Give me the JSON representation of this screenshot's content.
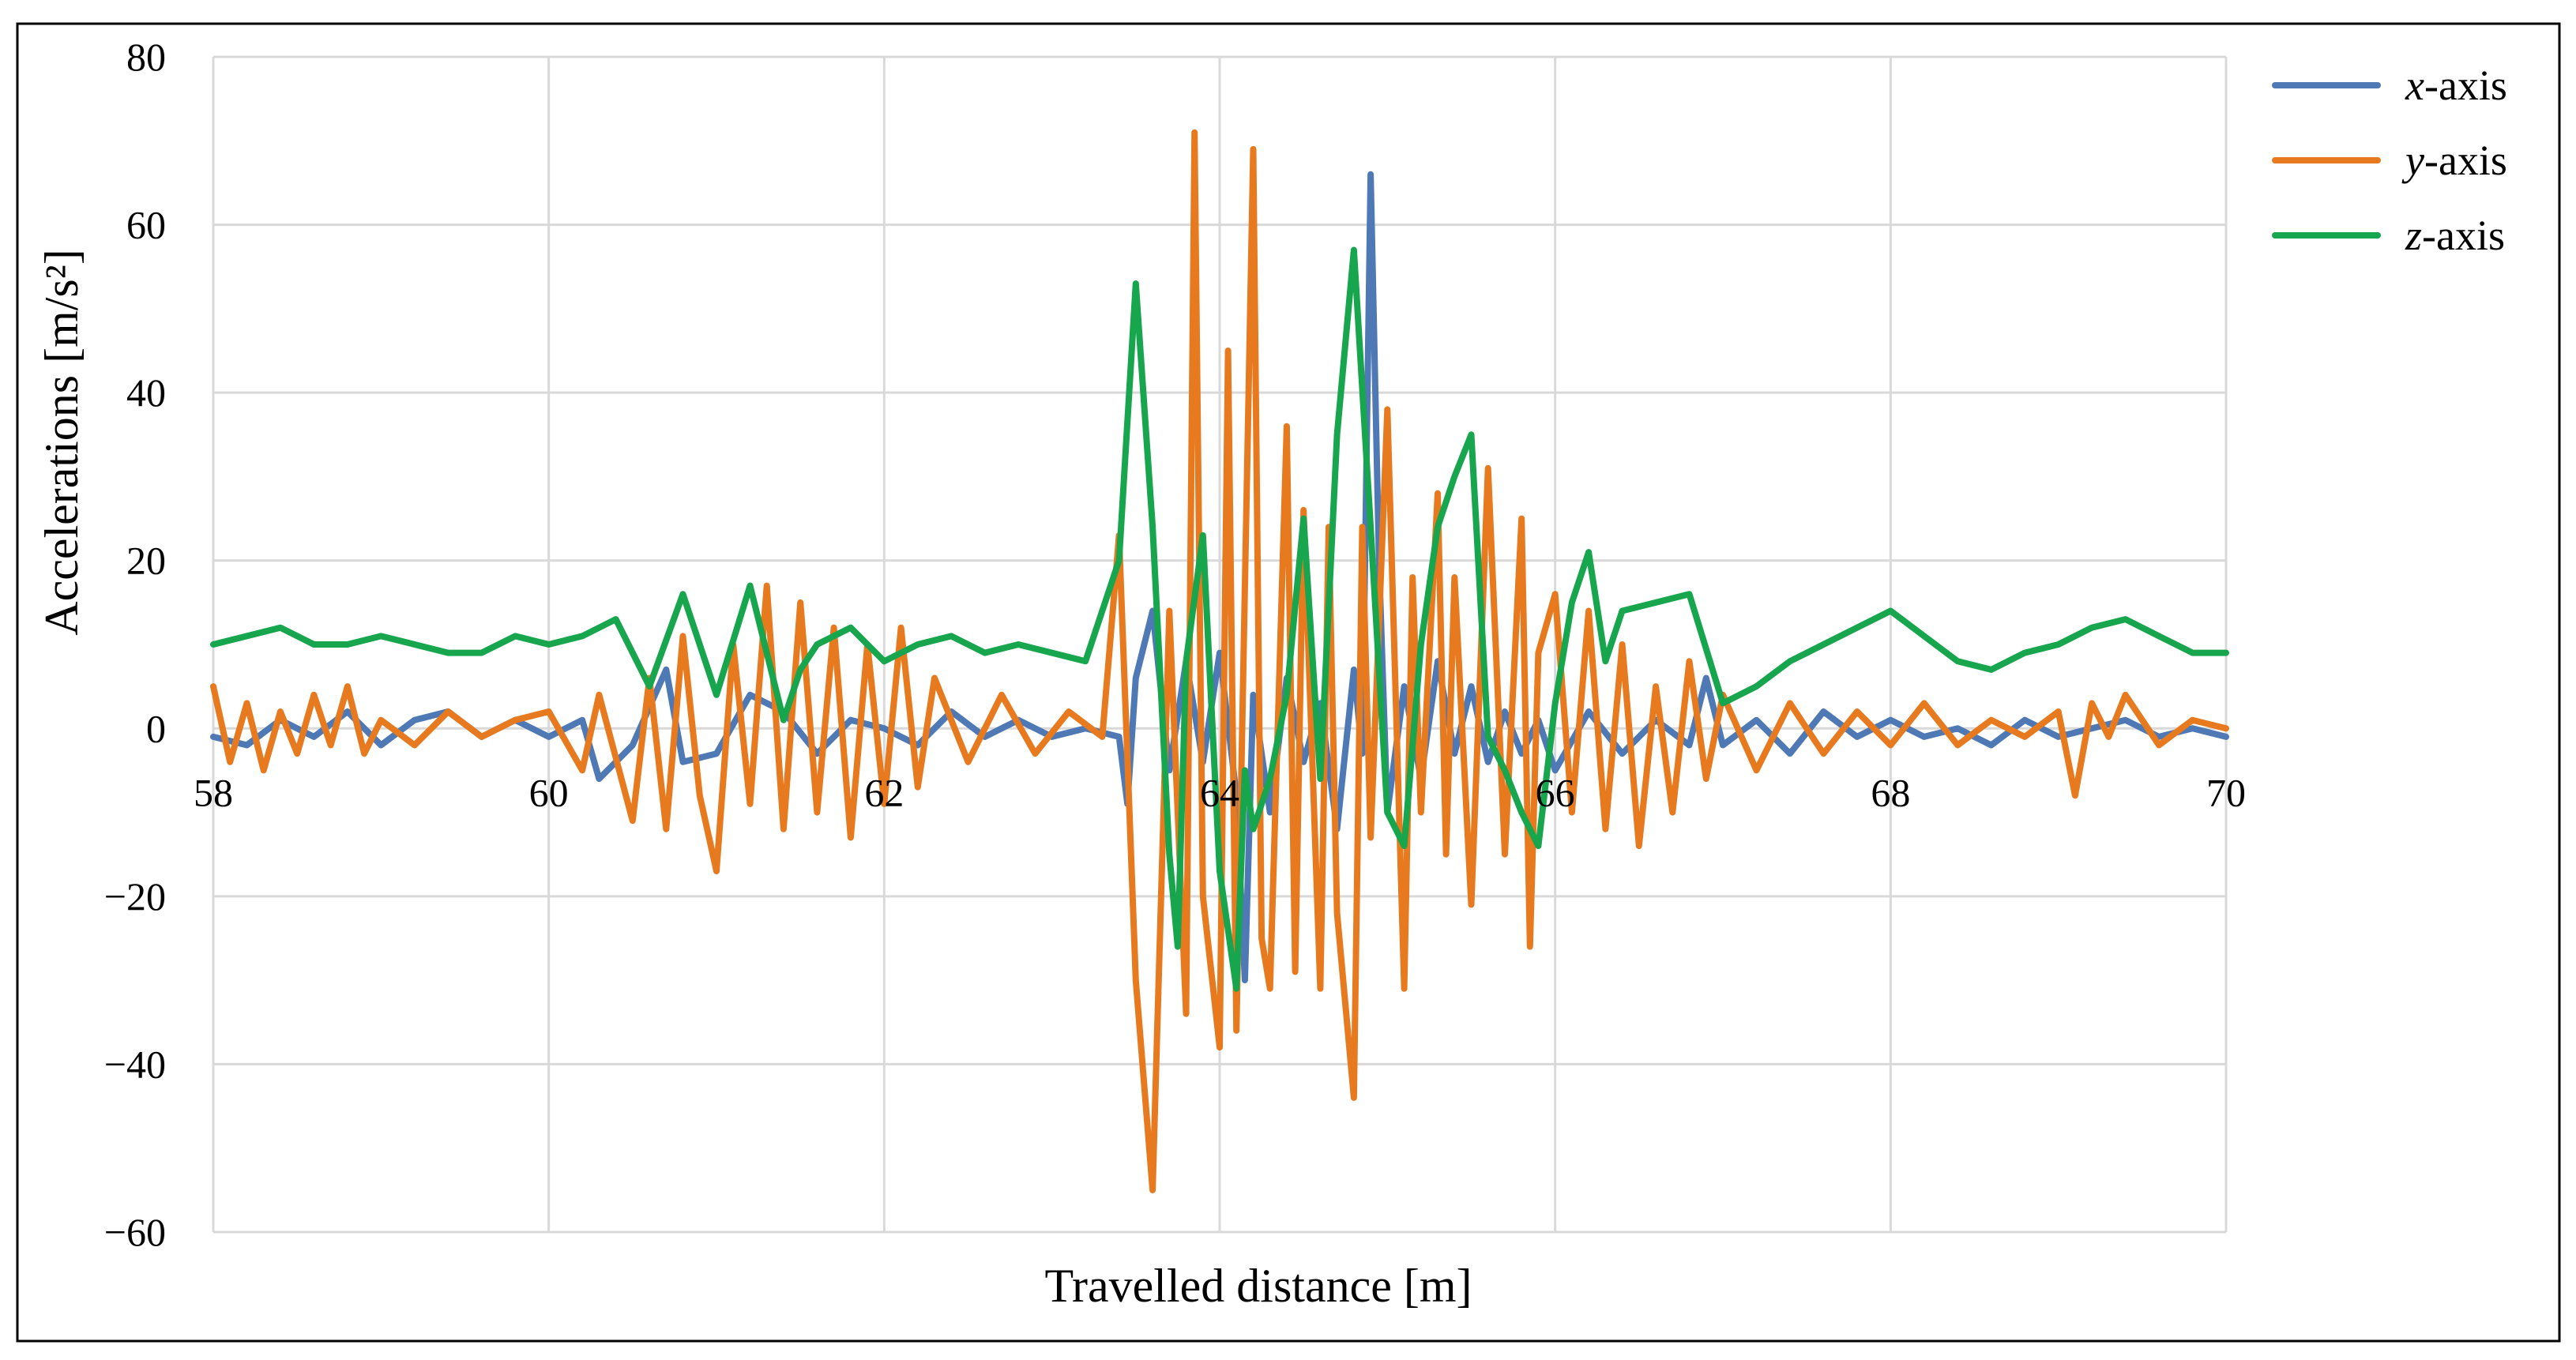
{
  "chart_data": {
    "type": "line",
    "xlabel": "Travelled distance [m]",
    "ylabel": "Accelerations [m/s²]",
    "xlim": [
      58,
      70
    ],
    "ylim": [
      -60,
      80
    ],
    "xticks": [
      "58",
      "60",
      "62",
      "64",
      "66",
      "68",
      "70"
    ],
    "yticks": [
      "80",
      "60",
      "40",
      "20",
      "0",
      "−20",
      "−40",
      "−60"
    ],
    "grid": true,
    "legend_position": "top-right",
    "series": [
      {
        "name": "x-axis",
        "legend_var": "x",
        "legend_suffix": "-axis",
        "color": "#4e79b5",
        "x": [
          58.0,
          58.2,
          58.4,
          58.6,
          58.8,
          59.0,
          59.2,
          59.4,
          59.6,
          59.8,
          60.0,
          60.2,
          60.3,
          60.5,
          60.7,
          60.8,
          61.0,
          61.2,
          61.4,
          61.6,
          61.8,
          62.0,
          62.2,
          62.4,
          62.6,
          62.8,
          63.0,
          63.2,
          63.4,
          63.45,
          63.5,
          63.6,
          63.7,
          63.8,
          63.9,
          64.0,
          64.1,
          64.15,
          64.2,
          64.3,
          64.4,
          64.5,
          64.6,
          64.7,
          64.8,
          64.85,
          64.9,
          64.95,
          65.0,
          65.1,
          65.2,
          65.3,
          65.4,
          65.5,
          65.6,
          65.7,
          65.8,
          65.9,
          66.0,
          66.2,
          66.4,
          66.6,
          66.8,
          66.9,
          67.0,
          67.2,
          67.4,
          67.6,
          67.8,
          68.0,
          68.2,
          68.4,
          68.6,
          68.8,
          69.0,
          69.2,
          69.4,
          69.6,
          69.8,
          70.0
        ],
        "y": [
          -1,
          -2,
          1,
          -1,
          2,
          -2,
          1,
          2,
          -1,
          1,
          -1,
          1,
          -6,
          -2,
          7,
          -4,
          -3,
          4,
          2,
          -3,
          1,
          0,
          -2,
          2,
          -1,
          1,
          -1,
          0,
          -1,
          -9,
          6,
          14,
          -5,
          8,
          -4,
          9,
          -8,
          -30,
          4,
          -10,
          6,
          -4,
          3,
          -12,
          7,
          -3,
          66,
          20,
          -10,
          5,
          -6,
          8,
          -3,
          5,
          -4,
          2,
          -3,
          1,
          -5,
          2,
          -3,
          1,
          -2,
          6,
          -2,
          1,
          -3,
          2,
          -1,
          1,
          -1,
          0,
          -2,
          1,
          -1,
          0,
          1,
          -1,
          0,
          -1
        ]
      },
      {
        "name": "y-axis",
        "legend_var": "y",
        "legend_suffix": "-axis",
        "color": "#e77a1f",
        "x": [
          58.0,
          58.1,
          58.2,
          58.3,
          58.4,
          58.5,
          58.6,
          58.7,
          58.8,
          58.9,
          59.0,
          59.2,
          59.4,
          59.6,
          59.8,
          60.0,
          60.2,
          60.3,
          60.5,
          60.6,
          60.7,
          60.8,
          60.9,
          61.0,
          61.1,
          61.2,
          61.3,
          61.4,
          61.5,
          61.6,
          61.7,
          61.8,
          61.9,
          62.0,
          62.1,
          62.2,
          62.3,
          62.5,
          62.7,
          62.9,
          63.1,
          63.3,
          63.4,
          63.5,
          63.6,
          63.7,
          63.8,
          63.85,
          63.9,
          64.0,
          64.05,
          64.1,
          64.2,
          64.25,
          64.3,
          64.4,
          64.45,
          64.5,
          64.6,
          64.65,
          64.7,
          64.8,
          64.85,
          64.9,
          65.0,
          65.1,
          65.15,
          65.2,
          65.3,
          65.35,
          65.4,
          65.5,
          65.6,
          65.7,
          65.8,
          65.85,
          65.9,
          66.0,
          66.1,
          66.2,
          66.3,
          66.4,
          66.5,
          66.6,
          66.7,
          66.8,
          66.9,
          67.0,
          67.2,
          67.4,
          67.6,
          67.8,
          68.0,
          68.2,
          68.4,
          68.6,
          68.8,
          69.0,
          69.1,
          69.2,
          69.3,
          69.4,
          69.6,
          69.8,
          70.0
        ],
        "y": [
          5,
          -4,
          3,
          -5,
          2,
          -3,
          4,
          -2,
          5,
          -3,
          1,
          -2,
          2,
          -1,
          1,
          2,
          -5,
          4,
          -11,
          6,
          -12,
          11,
          -8,
          -17,
          10,
          -9,
          17,
          -12,
          15,
          -10,
          12,
          -13,
          10,
          -9,
          12,
          -7,
          6,
          -4,
          4,
          -3,
          2,
          -1,
          23,
          -30,
          -55,
          14,
          -34,
          71,
          -20,
          -38,
          45,
          -36,
          69,
          -25,
          -31,
          36,
          -29,
          26,
          -31,
          24,
          -22,
          -44,
          24,
          -13,
          38,
          -31,
          18,
          -10,
          28,
          -15,
          18,
          -21,
          31,
          -15,
          25,
          -26,
          9,
          16,
          -10,
          14,
          -12,
          10,
          -14,
          5,
          -10,
          8,
          -6,
          4,
          -5,
          3,
          -3,
          2,
          -2,
          3,
          -2,
          1,
          -1,
          2,
          -8,
          3,
          -1,
          4,
          -2,
          1,
          0
        ]
      },
      {
        "name": "z-axis",
        "legend_var": "z",
        "legend_suffix": "-axis",
        "color": "#17a54d",
        "x": [
          58.0,
          58.2,
          58.4,
          58.6,
          58.8,
          59.0,
          59.2,
          59.4,
          59.6,
          59.8,
          60.0,
          60.2,
          60.4,
          60.6,
          60.8,
          61.0,
          61.2,
          61.3,
          61.4,
          61.5,
          61.6,
          61.8,
          62.0,
          62.2,
          62.4,
          62.6,
          62.8,
          63.0,
          63.2,
          63.4,
          63.5,
          63.6,
          63.7,
          63.75,
          63.8,
          63.9,
          64.0,
          64.1,
          64.15,
          64.2,
          64.3,
          64.4,
          64.5,
          64.6,
          64.7,
          64.8,
          64.9,
          65.0,
          65.1,
          65.2,
          65.3,
          65.4,
          65.5,
          65.6,
          65.7,
          65.8,
          65.9,
          66.0,
          66.1,
          66.2,
          66.3,
          66.4,
          66.6,
          66.8,
          67.0,
          67.2,
          67.4,
          67.6,
          67.8,
          68.0,
          68.2,
          68.4,
          68.6,
          68.8,
          69.0,
          69.2,
          69.4,
          69.6,
          69.8,
          70.0
        ],
        "y": [
          10,
          11,
          12,
          10,
          10,
          11,
          10,
          9,
          9,
          11,
          10,
          11,
          13,
          5,
          16,
          4,
          17,
          9,
          1,
          7,
          10,
          12,
          8,
          10,
          11,
          9,
          10,
          9,
          8,
          20,
          53,
          24,
          -15,
          -26,
          8,
          23,
          -17,
          -31,
          -5,
          -12,
          -6,
          4,
          25,
          -6,
          35,
          57,
          24,
          -10,
          -14,
          10,
          24,
          30,
          35,
          -1,
          -5,
          -10,
          -14,
          3,
          15,
          21,
          8,
          14,
          15,
          16,
          3,
          5,
          8,
          10,
          12,
          14,
          11,
          8,
          7,
          9,
          10,
          12,
          13,
          11,
          9,
          9
        ]
      }
    ]
  }
}
